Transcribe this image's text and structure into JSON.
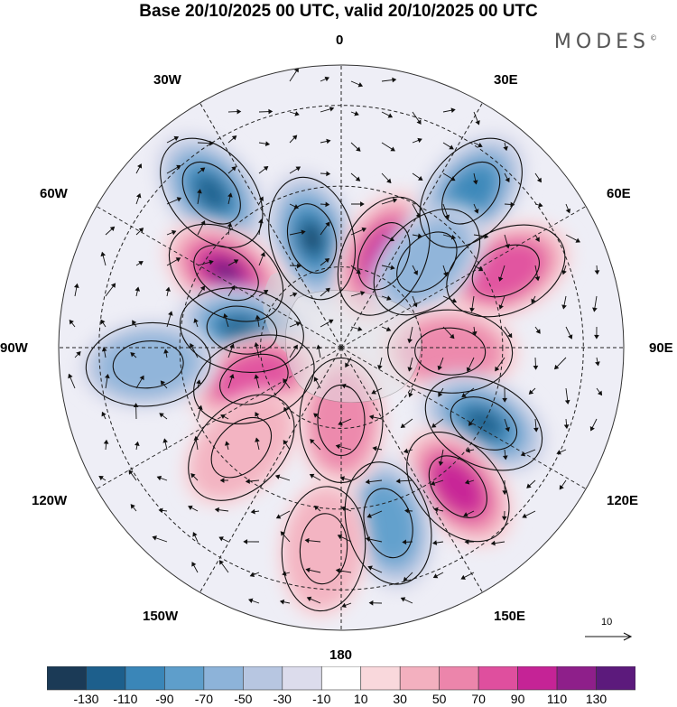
{
  "title": "Base 20/10/2025 00 UTC, valid 20/10/2025 00 UTC",
  "brand": "MODES",
  "brand_mark": "©",
  "longitude_labels": {
    "l0": "0",
    "l30e": "30E",
    "l60e": "60E",
    "l90e": "90E",
    "l120e": "120E",
    "l150e": "150E",
    "l180": "180",
    "l150w": "150W",
    "l120w": "120W",
    "l90w": "90W",
    "l60w": "60W",
    "l30w": "30W"
  },
  "reference_vector": {
    "label": "10"
  },
  "colorbar": {
    "colors": [
      "#1b3a56",
      "#1d5f8c",
      "#3a86b8",
      "#5e9ecb",
      "#8db3d9",
      "#b7c6e1",
      "#dcdcec",
      "#ffffff",
      "#f9d8dc",
      "#f3b0bf",
      "#ec85ab",
      "#df4f9e",
      "#c52396",
      "#8e1f8a",
      "#5c1a7c"
    ],
    "labels": [
      "-130",
      "-110",
      "-90",
      "-70",
      "-50",
      "-30",
      "-10",
      "10",
      "30",
      "50",
      "70",
      "90",
      "110",
      "130"
    ]
  },
  "anomaly_blobs": [
    {
      "name": "blob-neg-north-atlantic",
      "lon": -40,
      "colat": 50,
      "sign": "neg",
      "level": 5
    },
    {
      "name": "blob-neg-greenland-sea",
      "lon": -15,
      "colat": 28,
      "sign": "neg",
      "level": 6
    },
    {
      "name": "blob-pos-barents",
      "lon": 25,
      "colat": 25,
      "sign": "pos",
      "level": 4
    },
    {
      "name": "blob-neg-scandinavia",
      "lon": 40,
      "colat": 50,
      "sign": "neg",
      "level": 4
    },
    {
      "name": "blob-pos-west-siberia",
      "lon": 65,
      "colat": 45,
      "sign": "pos",
      "level": 3
    },
    {
      "name": "blob-neg-kara",
      "lon": 45,
      "colat": 30,
      "sign": "neg",
      "level": 2
    },
    {
      "name": "blob-pos-central-siberia",
      "lon": 92,
      "colat": 27,
      "sign": "pos",
      "level": 2
    },
    {
      "name": "blob-neg-east-siberia",
      "lon": 118,
      "colat": 40,
      "sign": "neg",
      "level": 5
    },
    {
      "name": "blob-pos-japan",
      "lon": 140,
      "colat": 45,
      "sign": "pos",
      "level": 4
    },
    {
      "name": "blob-neg-bering",
      "lon": 165,
      "colat": 45,
      "sign": "neg",
      "level": 3
    },
    {
      "name": "blob-pos-pacific",
      "lon": 180,
      "colat": 18,
      "sign": "pos",
      "level": 2
    },
    {
      "name": "blob-pos-labrador",
      "lon": -57,
      "colat": 34,
      "sign": "pos",
      "level": 6
    },
    {
      "name": "blob-neg-canada",
      "lon": -80,
      "colat": 25,
      "sign": "neg",
      "level": 5
    },
    {
      "name": "blob-pos-alaska",
      "lon": -110,
      "colat": 23,
      "sign": "pos",
      "level": 3
    },
    {
      "name": "blob-pos-gulf-alaska",
      "lon": -135,
      "colat": 35,
      "sign": "pos",
      "level": 1
    },
    {
      "name": "blob-neg-east-pacific",
      "lon": -95,
      "colat": 48,
      "sign": "neg",
      "level": 2
    },
    {
      "name": "blob-pos-south-pacific",
      "lon": -175,
      "colat": 50,
      "sign": "pos",
      "level": 1
    }
  ]
}
